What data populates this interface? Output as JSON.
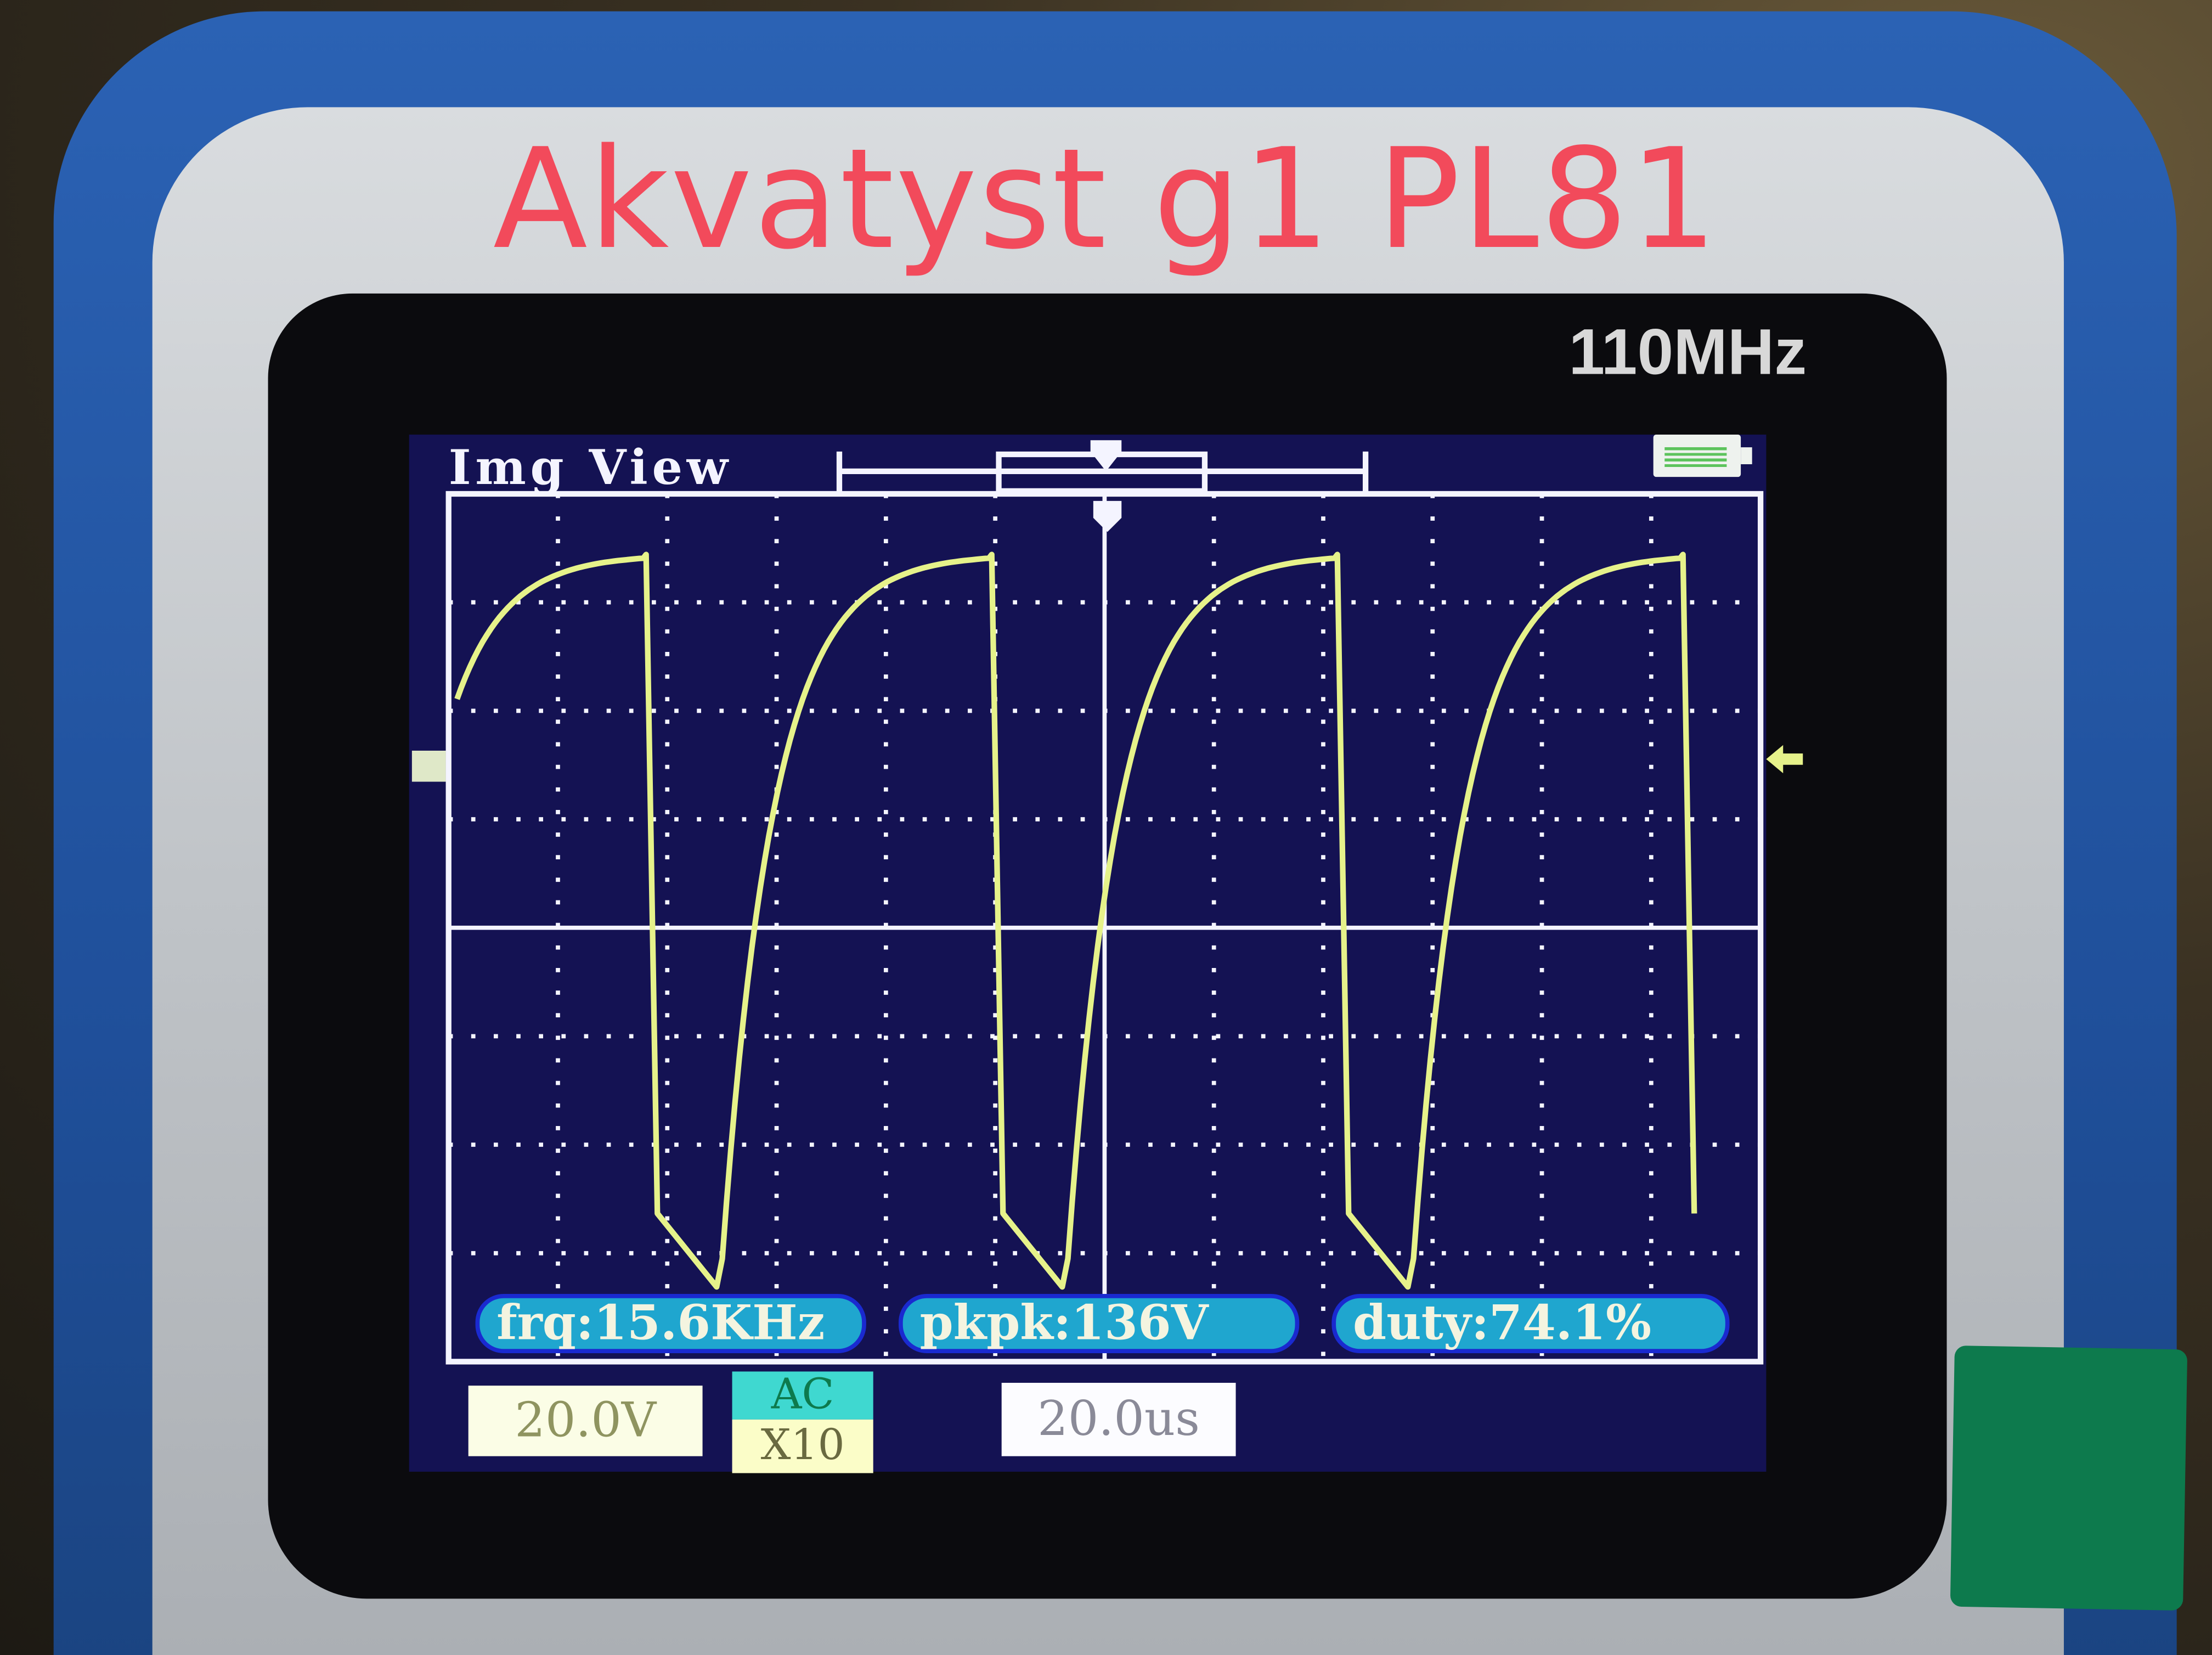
{
  "overlay_title": "Akvatyst g1 PL81",
  "device": {
    "bandwidth_label": "110MHz"
  },
  "screen": {
    "header": "Img View",
    "battery_icon": "battery-full-icon",
    "measurements": {
      "frequency": "frq:15.6KHz",
      "peak_to_peak": "pkpk:136V",
      "duty": "duty:74.1%"
    },
    "channel": {
      "volts_per_div": "20.0V",
      "coupling": "AC",
      "probe": "X10"
    },
    "timebase": "20.0us"
  },
  "colors": {
    "title": "#f24a5b",
    "trace": "#e6f28a",
    "screen_bg": "#141253",
    "measure_pill": "#1fa6cf",
    "case": "#2b62b4"
  }
}
